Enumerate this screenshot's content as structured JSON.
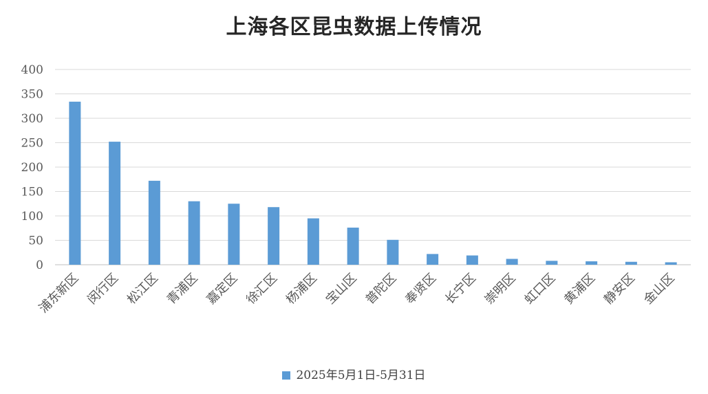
{
  "chart_data": {
    "type": "bar",
    "title": "上海各区昆虫数据上传情况",
    "xlabel": "",
    "ylabel": "",
    "ylim": [
      0,
      400
    ],
    "yticks": [
      0,
      50,
      100,
      150,
      200,
      250,
      300,
      350,
      400
    ],
    "grid": true,
    "legend_position": "bottom",
    "bar_color": "#5B9BD5",
    "grid_color": "#D9D9D9",
    "axis_color": "#BFBFBF",
    "text_color": "#595959",
    "categories": [
      "浦东新区",
      "闵行区",
      "松江区",
      "青浦区",
      "嘉定区",
      "徐汇区",
      "杨浦区",
      "宝山区",
      "普陀区",
      "奉贤区",
      "长宁区",
      "崇明区",
      "虹口区",
      "黄浦区",
      "静安区",
      "金山区"
    ],
    "series": [
      {
        "name": "2025年5月1日-5月31日",
        "values": [
          334,
          252,
          172,
          130,
          125,
          118,
          95,
          76,
          51,
          22,
          19,
          12,
          8,
          7,
          6,
          5
        ]
      }
    ]
  }
}
